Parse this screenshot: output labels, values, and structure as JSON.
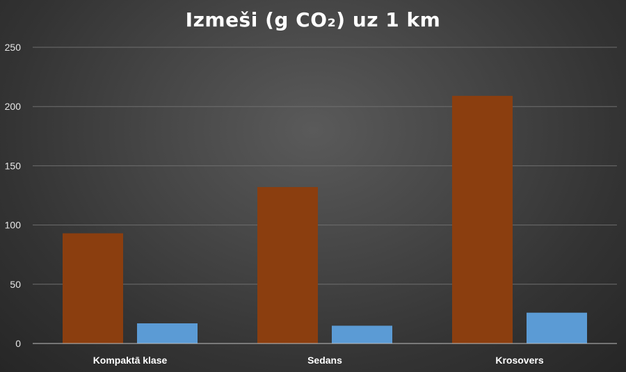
{
  "chart_data": {
    "type": "bar",
    "title": "Izmeši (g CO₂) uz 1 km",
    "xlabel": "",
    "ylabel": "",
    "categories": [
      "Kompaktā klase",
      "Sedans",
      "Krosovers"
    ],
    "series": [
      {
        "values": [
          93,
          132,
          209
        ],
        "color": "#8b3e0f"
      },
      {
        "values": [
          17,
          15,
          26
        ],
        "color": "#5b9bd5"
      }
    ],
    "ylim": [
      0,
      250
    ],
    "yticks": [
      0,
      50,
      100,
      150,
      200,
      250
    ],
    "grid": true,
    "legend": "none"
  }
}
